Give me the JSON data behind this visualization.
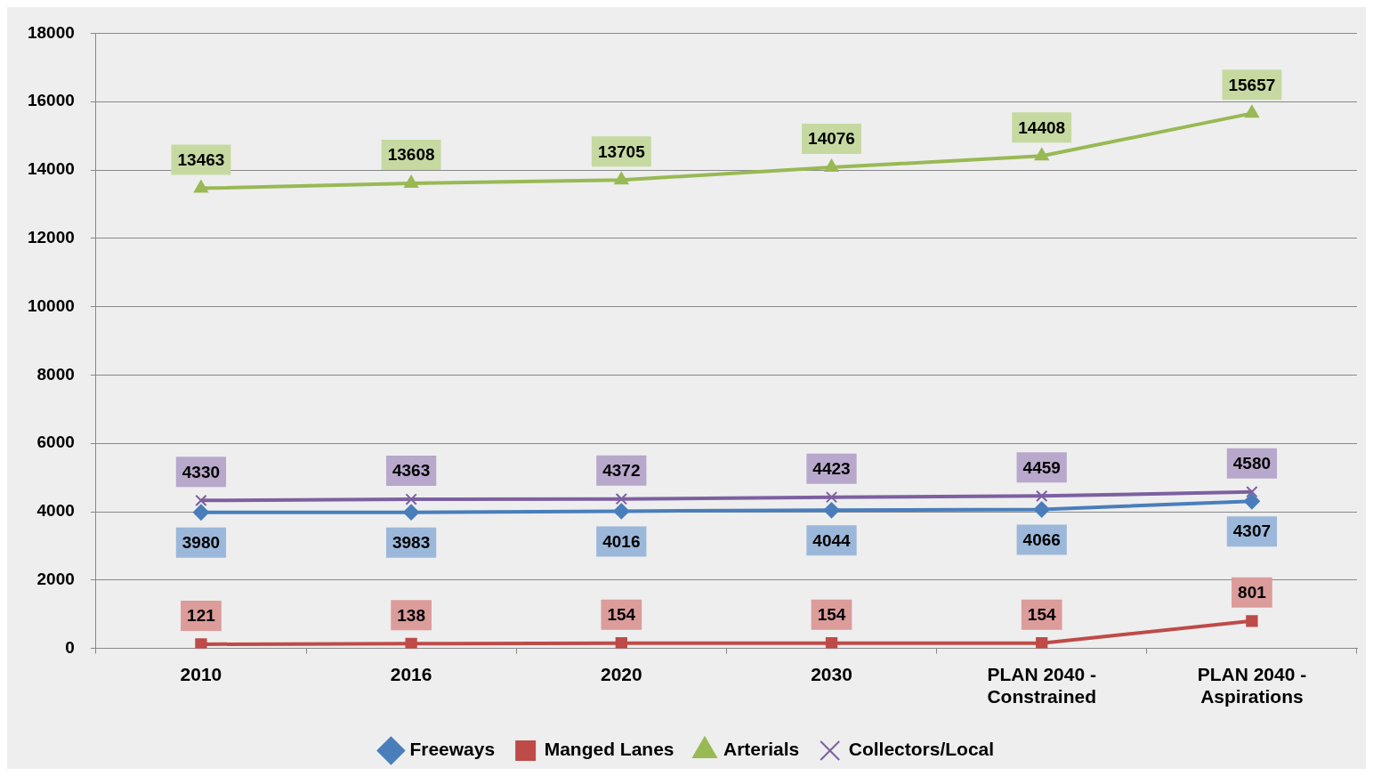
{
  "chart_data": {
    "type": "line",
    "categories": [
      "2010",
      "2016",
      "2020",
      "2030",
      "PLAN 2040 - Constrained",
      "PLAN 2040 - Aspirations"
    ],
    "series": [
      {
        "name": "Freeways",
        "color": "#4a7ebb",
        "marker": "diamond",
        "values": [
          3980,
          3983,
          4016,
          4044,
          4066,
          4307
        ]
      },
      {
        "name": "Manged Lanes",
        "color": "#be4b48",
        "marker": "square",
        "values": [
          121,
          138,
          154,
          154,
          154,
          801
        ]
      },
      {
        "name": "Arterials",
        "color": "#98b954",
        "marker": "triangle",
        "values": [
          13463,
          13608,
          13705,
          14076,
          14408,
          15657
        ]
      },
      {
        "name": "Collectors/Local",
        "color": "#7d60a0",
        "marker": "cross",
        "values": [
          4330,
          4363,
          4372,
          4423,
          4459,
          4580
        ]
      }
    ],
    "ylim": [
      0,
      18000
    ],
    "yticks": [
      0,
      2000,
      4000,
      6000,
      8000,
      10000,
      12000,
      14000,
      16000,
      18000
    ],
    "grid": "y",
    "legend": "bottom",
    "data_labels": true,
    "line_style": "solid"
  }
}
